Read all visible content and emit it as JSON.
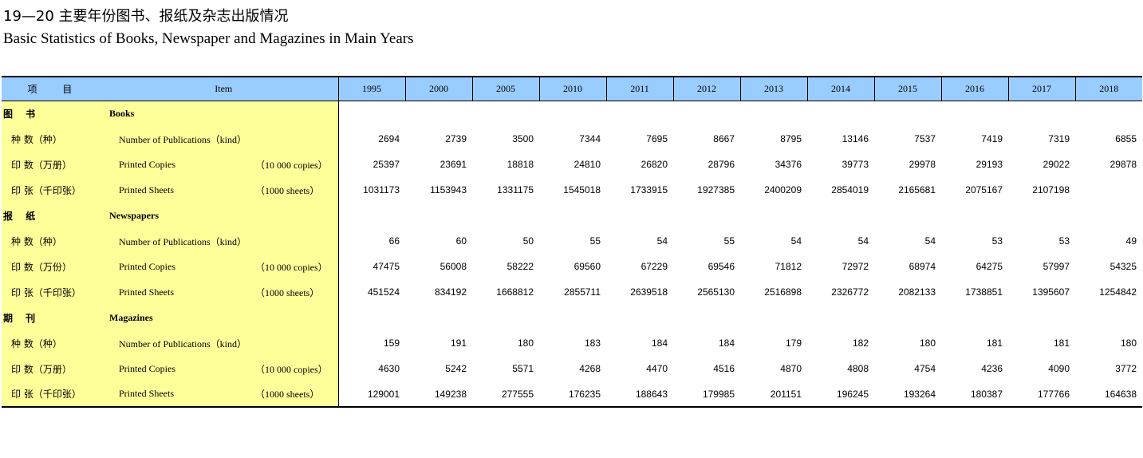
{
  "title_cn": "19—20 主要年份图书、报纸及杂志出版情况",
  "title_en": "Basic Statistics of Books, Newspaper and Magazines in Main Years",
  "header": {
    "cn": "项 目",
    "item": "Item",
    "years": [
      "1995",
      "2000",
      "2005",
      "2010",
      "2011",
      "2012",
      "2013",
      "2014",
      "2015",
      "2016",
      "2017",
      "2018"
    ]
  },
  "rows": [
    {
      "section": true,
      "cn": "图 书",
      "en": "Books",
      "unit": "",
      "values": [
        "",
        "",
        "",
        "",
        "",
        "",
        "",
        "",
        "",
        "",
        "",
        ""
      ]
    },
    {
      "cn": "种 数（种）",
      "en": "Number of Publications（kind）",
      "unit": "",
      "values": [
        "2694",
        "2739",
        "3500",
        "7344",
        "7695",
        "8667",
        "8795",
        "13146",
        "7537",
        "7419",
        "7319",
        "6855"
      ]
    },
    {
      "cn": "印 数（万册）",
      "en": "Printed Copies",
      "unit": "（10 000 copies）",
      "values": [
        "25397",
        "23691",
        "18818",
        "24810",
        "26820",
        "28796",
        "34376",
        "39773",
        "29978",
        "29193",
        "29022",
        "29878"
      ]
    },
    {
      "cn": "印 张（千印张）",
      "en": "Printed Sheets",
      "unit": "（1000 sheets）",
      "values": [
        "1031173",
        "1153943",
        "1331175",
        "1545018",
        "1733915",
        "1927385",
        "2400209",
        "2854019",
        "2165681",
        "2075167",
        "2107198",
        ""
      ]
    },
    {
      "section": true,
      "cn": "报 纸",
      "en": "Newspapers",
      "unit": "",
      "values": [
        "",
        "",
        "",
        "",
        "",
        "",
        "",
        "",
        "",
        "",
        "",
        ""
      ]
    },
    {
      "cn": "种 数（种）",
      "en": "Number of Publications（kind）",
      "unit": "",
      "values": [
        "66",
        "60",
        "50",
        "55",
        "54",
        "55",
        "54",
        "54",
        "54",
        "53",
        "53",
        "49"
      ]
    },
    {
      "cn": "印 数（万份）",
      "en": "Printed Copies",
      "unit": "（10 000 copies）",
      "values": [
        "47475",
        "56008",
        "58222",
        "69560",
        "67229",
        "69546",
        "71812",
        "72972",
        "68974",
        "64275",
        "57997",
        "54325"
      ]
    },
    {
      "cn": "印 张（千印张）",
      "en": "Printed Sheets",
      "unit": "（1000 sheets）",
      "values": [
        "451524",
        "834192",
        "1668812",
        "2855711",
        "2639518",
        "2565130",
        "2516898",
        "2326772",
        "2082133",
        "1738851",
        "1395607",
        "1254842"
      ]
    },
    {
      "section": true,
      "cn": "期 刊",
      "en": "Magazines",
      "unit": "",
      "values": [
        "",
        "",
        "",
        "",
        "",
        "",
        "",
        "",
        "",
        "",
        "",
        ""
      ]
    },
    {
      "cn": "种 数（种）",
      "en": "Number of Publications（kind）",
      "unit": "",
      "values": [
        "159",
        "191",
        "180",
        "183",
        "184",
        "184",
        "179",
        "182",
        "180",
        "181",
        "181",
        "180"
      ]
    },
    {
      "cn": "印 数（万册）",
      "en": "Printed Copies",
      "unit": "（10 000 copies）",
      "values": [
        "4630",
        "5242",
        "5571",
        "4268",
        "4470",
        "4516",
        "4870",
        "4808",
        "4754",
        "4236",
        "4090",
        "3772"
      ]
    },
    {
      "cn": "印 张（千印张）",
      "en": "Printed Sheets",
      "unit": "（1000 sheets）",
      "values": [
        "129001",
        "149238",
        "277555",
        "176235",
        "188643",
        "179985",
        "201151",
        "196245",
        "193264",
        "180387",
        "177766",
        "164638"
      ]
    }
  ],
  "colors": {
    "header_bg": "#99ccff",
    "label_bg": "#ffff99"
  }
}
